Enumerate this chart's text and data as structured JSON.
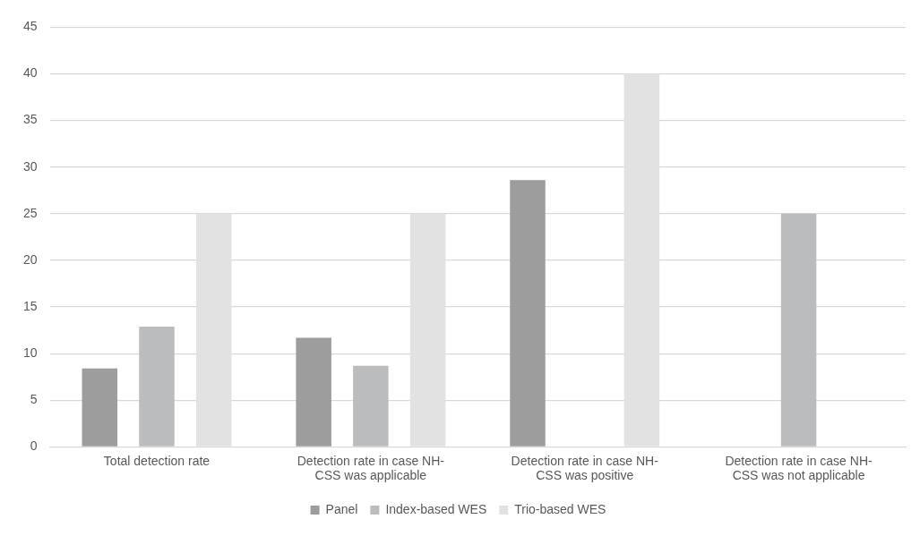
{
  "chart_data": {
    "type": "bar",
    "categories": [
      "Total detection rate",
      "Detection rate in case NH-CSS was applicable",
      "Detection rate in case NH-CSS was positive",
      "Detection rate in case NH-CSS was not applicable"
    ],
    "series": [
      {
        "name": "Panel",
        "color": "#9d9d9d",
        "values": [
          8.4,
          11.7,
          28.6,
          null
        ]
      },
      {
        "name": "Index-based WES",
        "color": "#bbbcbd",
        "values": [
          12.9,
          8.7,
          null,
          25
        ]
      },
      {
        "name": "Trio-based WES",
        "color": "#e2e2e2",
        "values": [
          25,
          25,
          40,
          null
        ]
      }
    ],
    "ylim": [
      0,
      45
    ],
    "yticks": [
      0,
      5,
      10,
      15,
      20,
      25,
      30,
      35,
      40,
      45
    ],
    "grid": "y",
    "legend": "bottom"
  }
}
